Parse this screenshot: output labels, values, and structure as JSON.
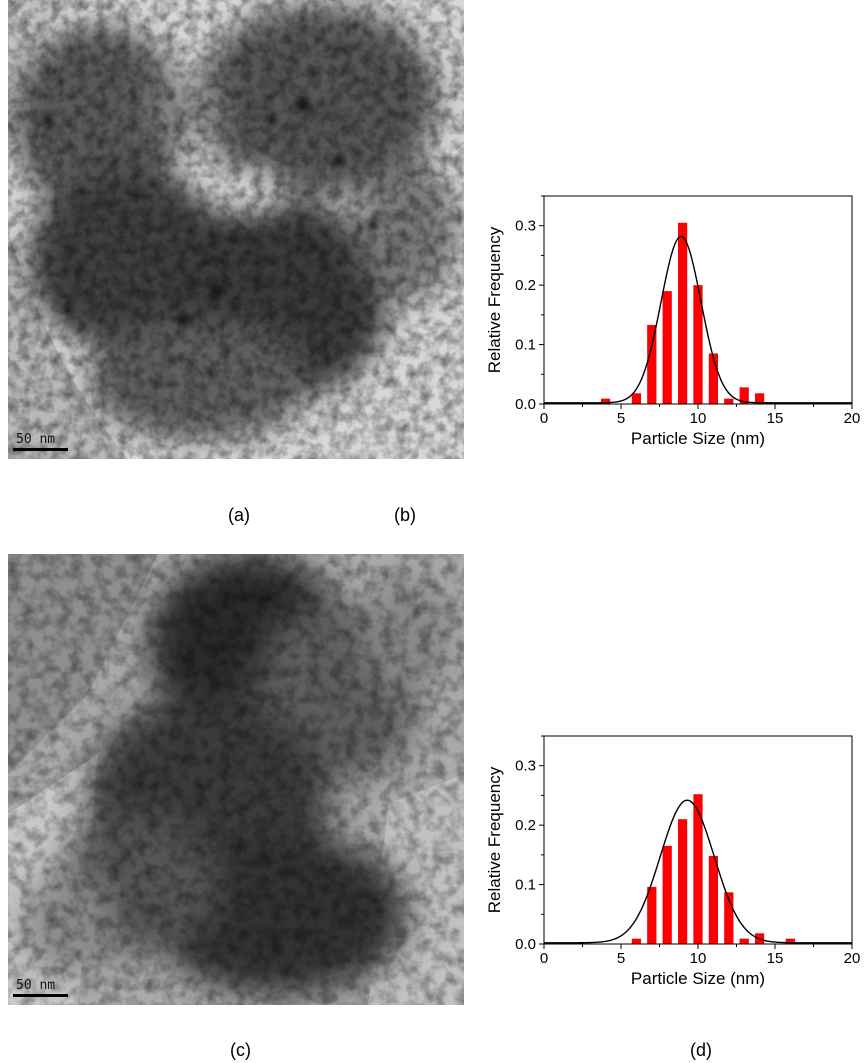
{
  "panels": {
    "a": {
      "label": "(a)",
      "scale_bar": "50 nm"
    },
    "b": {
      "label": "(b)"
    },
    "c": {
      "label": "(c)",
      "scale_bar": "50 nm"
    },
    "d": {
      "label": "(d)"
    }
  },
  "chart_data": [
    {
      "type": "bar",
      "panel": "b",
      "xlabel": "Particle Size (nm)",
      "ylabel": "Relative Frequency",
      "xlim": [
        0,
        20
      ],
      "ylim": [
        0,
        0.35
      ],
      "xticks": [
        0,
        5,
        10,
        15,
        20
      ],
      "yticks": [
        0.0,
        0.1,
        0.2,
        0.3
      ],
      "bar_color": "#ff0000",
      "x": [
        4,
        6,
        7,
        8,
        9,
        10,
        11,
        12,
        13,
        14
      ],
      "values": [
        0.009,
        0.018,
        0.133,
        0.19,
        0.305,
        0.2,
        0.085,
        0.009,
        0.028,
        0.018
      ],
      "fit_curve": {
        "type": "gaussian",
        "center": 8.9,
        "sigma": 1.3,
        "amplitude": 0.28,
        "color": "#000000"
      },
      "grid": false
    },
    {
      "type": "bar",
      "panel": "d",
      "xlabel": "Particle Size (nm)",
      "ylabel": "Relative Frequency",
      "xlim": [
        0,
        20
      ],
      "ylim": [
        0,
        0.35
      ],
      "xticks": [
        0,
        5,
        10,
        15,
        20
      ],
      "yticks": [
        0.0,
        0.1,
        0.2,
        0.3
      ],
      "bar_color": "#ff0000",
      "x": [
        6,
        7,
        8,
        9,
        10,
        11,
        12,
        13,
        14,
        16
      ],
      "values": [
        0.009,
        0.096,
        0.165,
        0.21,
        0.252,
        0.148,
        0.087,
        0.009,
        0.018,
        0.009
      ],
      "fit_curve": {
        "type": "gaussian",
        "center": 9.3,
        "sigma": 1.75,
        "amplitude": 0.24,
        "color": "#000000"
      },
      "grid": false
    }
  ]
}
